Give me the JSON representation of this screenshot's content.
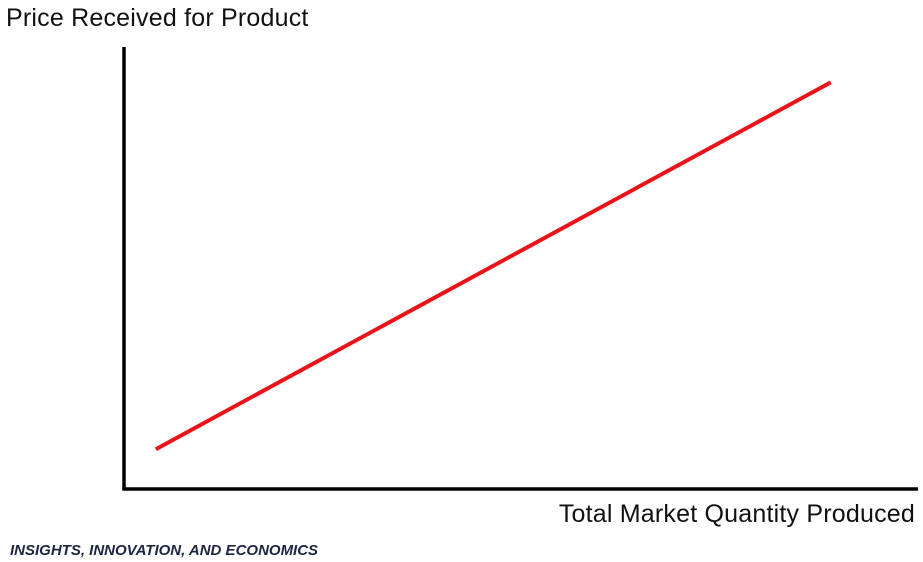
{
  "chart_data": {
    "type": "line",
    "title": "",
    "xlabel": "Total Market Quantity Produced",
    "ylabel": "Price Received for Product",
    "xlim": [
      0,
      100
    ],
    "ylim": [
      0,
      100
    ],
    "grid": false,
    "ticks": false,
    "series": [
      {
        "color": "#e8141a",
        "x": [
          4,
          89
        ],
        "y": [
          9,
          92
        ]
      }
    ]
  },
  "footer": {
    "source": "INSIGHTS, INNOVATION, AND ECONOMICS"
  },
  "colors": {
    "axis": "#000000",
    "line": "#e8141a",
    "footer_text": "#1c2541"
  }
}
